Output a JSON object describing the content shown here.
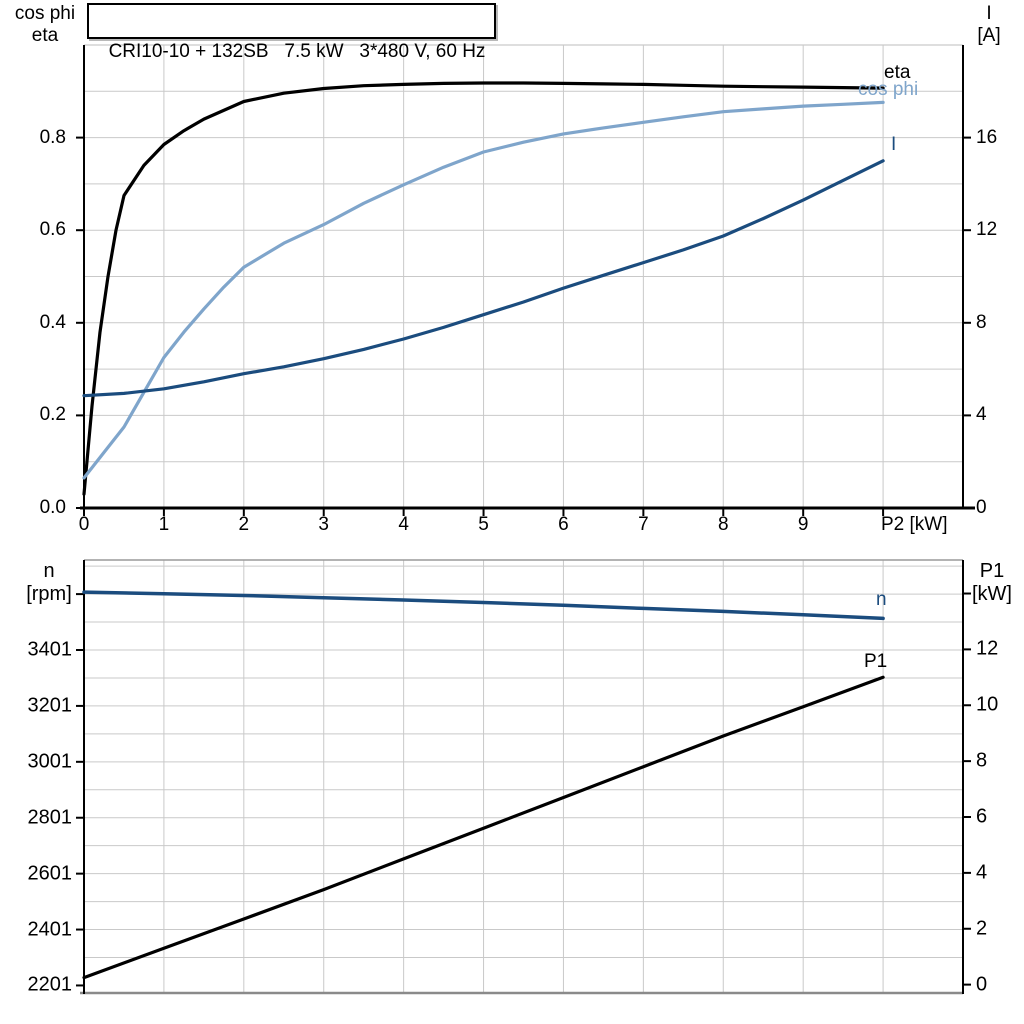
{
  "page": {
    "background": "#ffffff",
    "grid_color": "#c9c9c9",
    "frame_color": "#000000",
    "curve_dark_blue": "#1b4c7e",
    "curve_light_blue": "#7fa5cb",
    "curve_black": "#000000"
  },
  "title_box": {
    "text": "CRI10-10 + 132SB   7.5 kW   3*480 V, 60 Hz"
  },
  "chart_data": [
    {
      "id": "top",
      "type": "line",
      "title": "CRI10-10 + 132SB   7.5 kW   3*480 V, 60 Hz",
      "xlabel": "P2 [kW]",
      "ylabel_left": [
        "cos phi",
        "eta"
      ],
      "ylabel_right": [
        "I",
        "[A]"
      ],
      "xlim": [
        0,
        11
      ],
      "ylim_left": [
        0,
        1.0
      ],
      "ylim_right": [
        0,
        20
      ],
      "grid": true,
      "grid_color": "#c9c9c9",
      "xticks": [
        {
          "v": 0,
          "t": "0"
        },
        {
          "v": 1,
          "t": "1"
        },
        {
          "v": 2,
          "t": "2"
        },
        {
          "v": 3,
          "t": "3"
        },
        {
          "v": 4,
          "t": "4"
        },
        {
          "v": 5,
          "t": "5"
        },
        {
          "v": 6,
          "t": "6"
        },
        {
          "v": 7,
          "t": "7"
        },
        {
          "v": 8,
          "t": "8"
        },
        {
          "v": 9,
          "t": "9"
        }
      ],
      "grid_x": [
        1,
        2,
        3,
        4,
        5,
        6,
        7,
        8,
        9,
        10
      ],
      "yticks_left": [
        {
          "v": 0.0,
          "t": "0.0"
        },
        {
          "v": 0.2,
          "t": "0.2"
        },
        {
          "v": 0.4,
          "t": "0.4"
        },
        {
          "v": 0.6,
          "t": "0.6"
        },
        {
          "v": 0.8,
          "t": "0.8"
        }
      ],
      "yticks_right": [
        {
          "v": 0,
          "t": "0"
        },
        {
          "v": 4,
          "t": "4"
        },
        {
          "v": 8,
          "t": "8"
        },
        {
          "v": 12,
          "t": "12"
        },
        {
          "v": 16,
          "t": "16"
        }
      ],
      "grid_y_left_units": [
        0.1,
        0.2,
        0.3,
        0.4,
        0.5,
        0.6,
        0.7,
        0.8,
        0.9
      ],
      "series": [
        {
          "name": "eta",
          "axis": "left",
          "color": "#000000",
          "width": 3.2,
          "points": [
            [
              0,
              0.03
            ],
            [
              0.1,
              0.22
            ],
            [
              0.2,
              0.38
            ],
            [
              0.3,
              0.5
            ],
            [
              0.4,
              0.6
            ],
            [
              0.5,
              0.675
            ],
            [
              0.75,
              0.74
            ],
            [
              1,
              0.785
            ],
            [
              1.25,
              0.815
            ],
            [
              1.5,
              0.84
            ],
            [
              2,
              0.878
            ],
            [
              2.5,
              0.896
            ],
            [
              3,
              0.906
            ],
            [
              3.5,
              0.912
            ],
            [
              4,
              0.915
            ],
            [
              4.5,
              0.917
            ],
            [
              5,
              0.918
            ],
            [
              5.5,
              0.918
            ],
            [
              6,
              0.917
            ],
            [
              6.5,
              0.916
            ],
            [
              7,
              0.915
            ],
            [
              7.5,
              0.913
            ],
            [
              8,
              0.911
            ],
            [
              8.5,
              0.91
            ],
            [
              9,
              0.909
            ],
            [
              9.5,
              0.908
            ],
            [
              10,
              0.907
            ]
          ]
        },
        {
          "name": "cos phi",
          "axis": "left",
          "color": "#7fa5cb",
          "width": 3.2,
          "points": [
            [
              0,
              0.065
            ],
            [
              0.25,
              0.12
            ],
            [
              0.5,
              0.175
            ],
            [
              0.75,
              0.25
            ],
            [
              1,
              0.325
            ],
            [
              1.25,
              0.38
            ],
            [
              1.5,
              0.43
            ],
            [
              1.75,
              0.477
            ],
            [
              2,
              0.52
            ],
            [
              2.5,
              0.572
            ],
            [
              3,
              0.612
            ],
            [
              3.5,
              0.658
            ],
            [
              4,
              0.698
            ],
            [
              4.5,
              0.736
            ],
            [
              5,
              0.769
            ],
            [
              5.5,
              0.79
            ],
            [
              6,
              0.808
            ],
            [
              6.5,
              0.821
            ],
            [
              7,
              0.833
            ],
            [
              7.5,
              0.845
            ],
            [
              8,
              0.856
            ],
            [
              8.5,
              0.862
            ],
            [
              9,
              0.868
            ],
            [
              9.5,
              0.872
            ],
            [
              10,
              0.876
            ]
          ]
        },
        {
          "name": "I",
          "axis": "right",
          "color": "#1b4c7e",
          "width": 3.2,
          "points": [
            [
              0,
              4.85
            ],
            [
              0.5,
              4.95
            ],
            [
              1,
              5.15
            ],
            [
              1.5,
              5.45
            ],
            [
              2,
              5.8
            ],
            [
              2.5,
              6.1
            ],
            [
              3,
              6.45
            ],
            [
              3.5,
              6.85
            ],
            [
              4,
              7.3
            ],
            [
              4.5,
              7.8
            ],
            [
              5,
              8.35
            ],
            [
              5.5,
              8.9
            ],
            [
              6,
              9.5
            ],
            [
              6.5,
              10.05
            ],
            [
              7,
              10.6
            ],
            [
              7.5,
              11.15
            ],
            [
              8,
              11.75
            ],
            [
              8.5,
              12.5
            ],
            [
              9,
              13.3
            ],
            [
              9.5,
              14.15
            ],
            [
              10,
              15.0
            ]
          ]
        }
      ]
    },
    {
      "id": "bottom",
      "type": "line",
      "title": "",
      "xlabel": "",
      "ylabel_left": [
        "n",
        "[rpm]"
      ],
      "ylabel_right": [
        "P1",
        "[kW]"
      ],
      "xlim": [
        0,
        11
      ],
      "ylim_left": [
        2174,
        3723
      ],
      "ylim_right": [
        -0.3,
        15.2
      ],
      "grid": true,
      "grid_color": "#c9c9c9",
      "xticks": [],
      "grid_x": [
        1,
        2,
        3,
        4,
        5,
        6,
        7,
        8,
        9,
        10
      ],
      "yticks_left": [
        {
          "v": 2201,
          "t": "2201"
        },
        {
          "v": 2401,
          "t": "2401"
        },
        {
          "v": 2601,
          "t": "2601"
        },
        {
          "v": 2801,
          "t": "2801"
        },
        {
          "v": 3001,
          "t": "3001"
        },
        {
          "v": 3201,
          "t": "3201"
        },
        {
          "v": 3401,
          "t": "3401"
        },
        {
          "v": 3601,
          "t": ""
        }
      ],
      "yticks_right": [
        {
          "v": 0,
          "t": "0"
        },
        {
          "v": 2,
          "t": "2"
        },
        {
          "v": 4,
          "t": "4"
        },
        {
          "v": 6,
          "t": "6"
        },
        {
          "v": 8,
          "t": "8"
        },
        {
          "v": 10,
          "t": "10"
        },
        {
          "v": 12,
          "t": "12"
        },
        {
          "v": 14,
          "t": ""
        }
      ],
      "grid_y_left_units": [
        2301,
        2401,
        2501,
        2601,
        2701,
        2801,
        2901,
        3001,
        3101,
        3201,
        3301,
        3401,
        3501,
        3601,
        3701
      ],
      "series": [
        {
          "name": "n",
          "axis": "left",
          "color": "#1b4c7e",
          "width": 3.5,
          "points": [
            [
              0,
              3608
            ],
            [
              1,
              3602
            ],
            [
              2,
              3596
            ],
            [
              3,
              3588
            ],
            [
              4,
              3580
            ],
            [
              5,
              3571
            ],
            [
              6,
              3561
            ],
            [
              7,
              3550
            ],
            [
              8,
              3539
            ],
            [
              9,
              3527
            ],
            [
              10,
              3514
            ]
          ]
        },
        {
          "name": "P1",
          "axis": "right",
          "color": "#000000",
          "width": 3.2,
          "points": [
            [
              0,
              0.25
            ],
            [
              1,
              1.3
            ],
            [
              2,
              2.35
            ],
            [
              3,
              3.4
            ],
            [
              4,
              4.5
            ],
            [
              5,
              5.6
            ],
            [
              6,
              6.7
            ],
            [
              7,
              7.8
            ],
            [
              8,
              8.9
            ],
            [
              9,
              9.95
            ],
            [
              10,
              11.0
            ]
          ]
        }
      ]
    }
  ]
}
